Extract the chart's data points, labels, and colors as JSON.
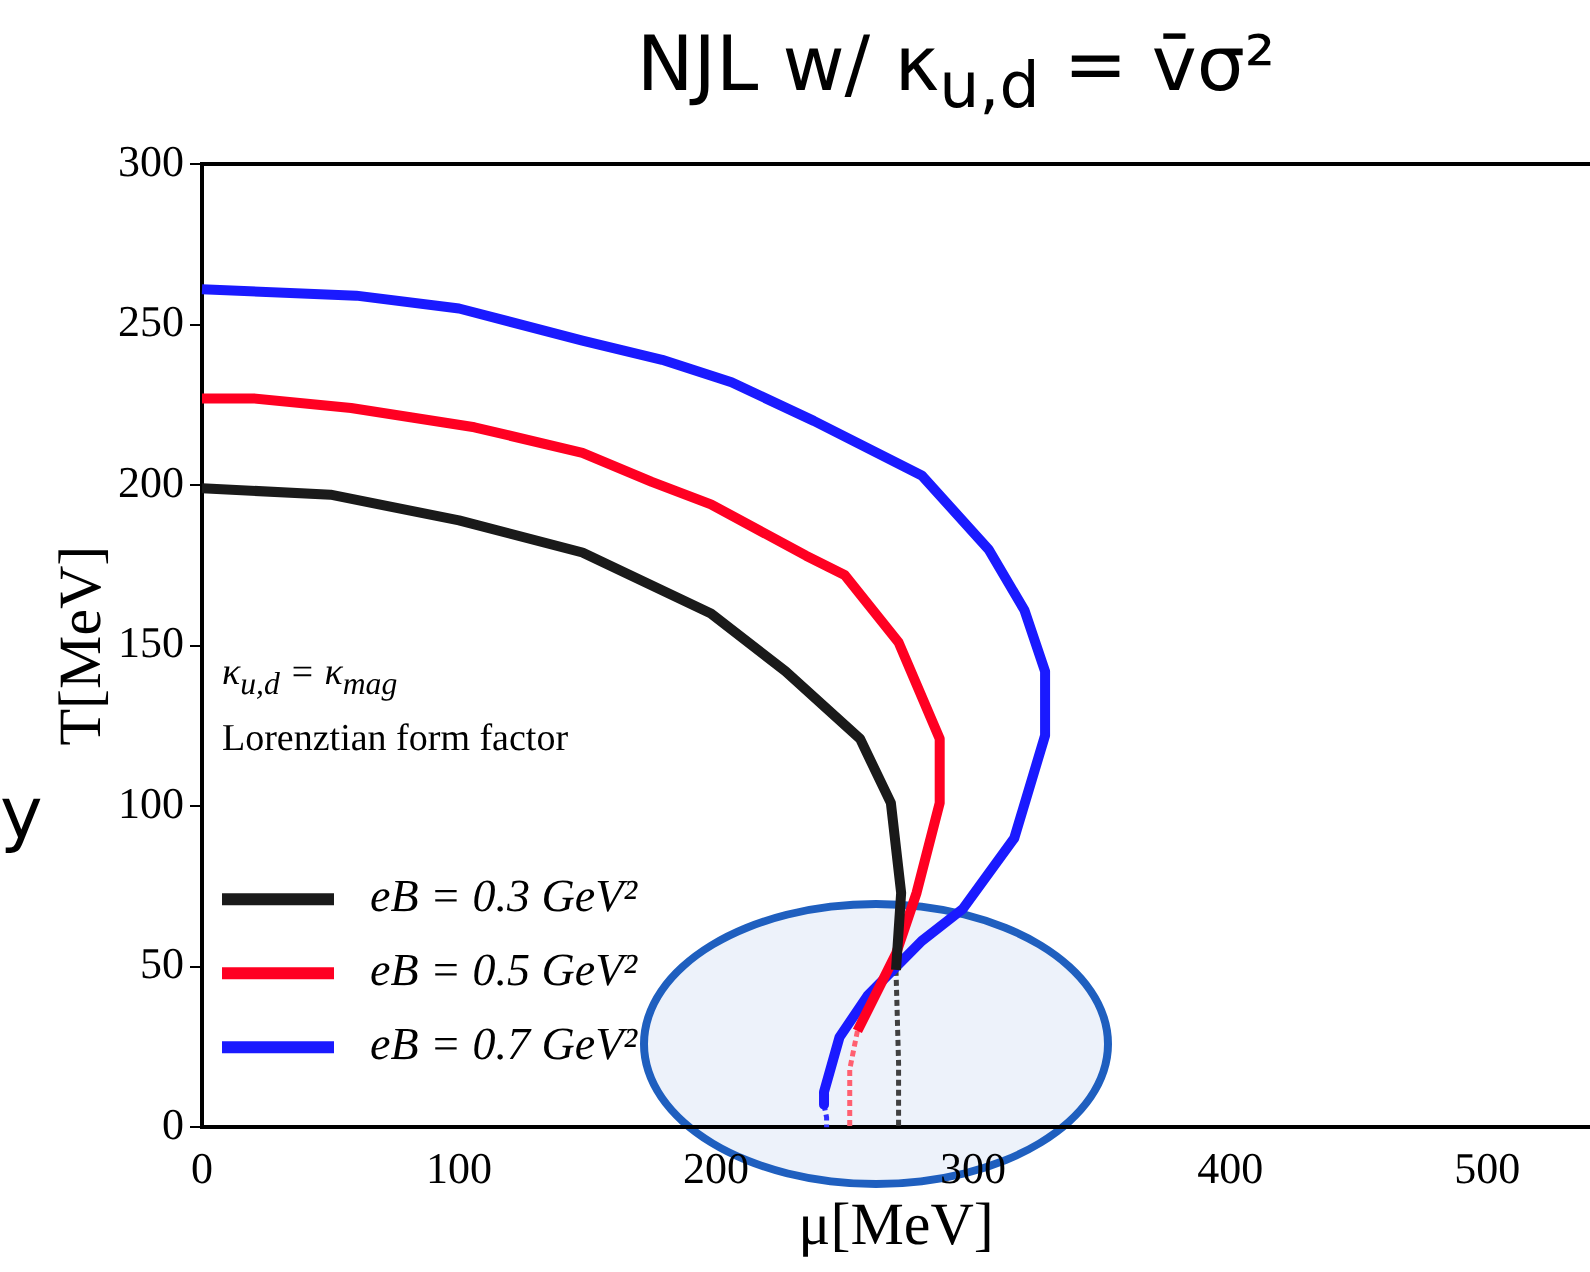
{
  "chart_data": {
    "type": "line",
    "title": "NJL w/ κ$_{u,d}$ = v̄σ²",
    "xlabel": "μ[MeV]",
    "ylabel": "T[MeV]",
    "xlim": [
      0,
      540
    ],
    "xticks": [
      0,
      100,
      200,
      300,
      400,
      500
    ],
    "ylim": [
      0,
      300
    ],
    "yticks": [
      0,
      50,
      100,
      150,
      200,
      250,
      300
    ],
    "grid": false,
    "legend": "bottom left",
    "marker": "none",
    "line_style": "solid",
    "annotations": [
      "κ$_{u,d}$ = κ$_{mag}$",
      "Lorenztian form factor",
      "y"
    ],
    "series": [
      {
        "name": "eB = 0.3 GeV²",
        "color": "#1a1a1a",
        "x": [
          0,
          50,
          100,
          148,
          198,
          227,
          256,
          268,
          272,
          270
        ],
        "values": [
          199,
          197,
          189,
          179,
          160,
          142,
          121,
          101,
          73,
          49
        ]
      },
      {
        "name": "eB = 0.5 GeV²",
        "color": "#ff0022",
        "x": [
          0,
          20,
          58,
          106,
          148,
          175,
          198,
          235,
          250,
          271,
          287,
          287,
          278,
          270,
          255
        ],
        "values": [
          227,
          227,
          224,
          218,
          210,
          201,
          194,
          178,
          172,
          151,
          121,
          101,
          73,
          54,
          30
        ]
      },
      {
        "name": "eB = 0.7 GeV²",
        "color": "#1a1aff",
        "x": [
          0,
          60,
          100,
          148,
          179,
          206,
          238,
          280,
          306,
          320,
          328,
          328,
          316,
          296,
          280,
          259,
          248,
          242,
          242
        ],
        "values": [
          261,
          259,
          255,
          245,
          239,
          232,
          220,
          203,
          180,
          161,
          142,
          122,
          90,
          68,
          58,
          41,
          28,
          11,
          7
        ]
      },
      {
        "color": "#404040",
        "line_style": "dashed",
        "x": [
          270,
          271,
          271
        ],
        "values": [
          49,
          20,
          0
        ]
      },
      {
        "color": "#ff6070",
        "line_style": "dashed",
        "x": [
          255,
          252,
          252
        ],
        "values": [
          30,
          18,
          0
        ]
      },
      {
        "color": "#3030ff",
        "line_style": "dashed",
        "x": [
          242,
          243,
          243
        ],
        "values": [
          7,
          3,
          0
        ]
      }
    ]
  }
}
